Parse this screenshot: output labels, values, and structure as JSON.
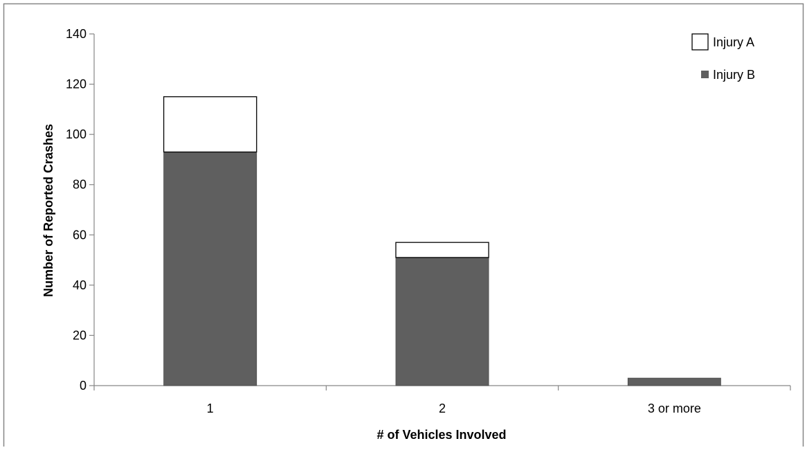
{
  "chart_data": {
    "type": "bar",
    "stacked": true,
    "title": "",
    "xlabel": "# of Vehicles Involved",
    "ylabel": "Number of Reported Crashes",
    "ylim": [
      0,
      140
    ],
    "yticks": [
      0,
      20,
      40,
      60,
      80,
      100,
      120,
      140
    ],
    "categories": [
      "1",
      "2",
      "3 or more"
    ],
    "series": [
      {
        "name": "Injury B",
        "values": [
          93,
          51,
          3
        ],
        "color": "#5f5f5f"
      },
      {
        "name": "Injury A",
        "values": [
          22,
          6,
          0
        ],
        "color": "#ffffff"
      }
    ],
    "legend": {
      "placement": "top-right",
      "items": [
        "Injury A",
        "Injury B"
      ]
    },
    "grid": false,
    "colors": {
      "bar_outline": "#000000",
      "axis": "#868686",
      "frame": "#868686"
    }
  }
}
